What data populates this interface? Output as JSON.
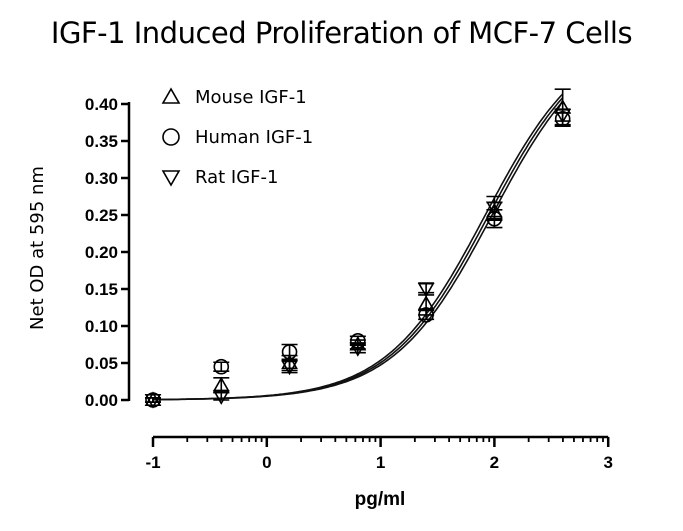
{
  "chart_data": {
    "type": "scatter",
    "title": "IGF-1 Induced Proliferation of MCF-7 Cells",
    "xlabel": "pg/ml",
    "ylabel": "Net OD at 595 nm",
    "xlim": [
      -1,
      3
    ],
    "ylim": [
      0,
      0.4
    ],
    "xticks": [
      "-1",
      "0",
      "1",
      "2",
      "3"
    ],
    "yticks": [
      "0.00",
      "0.05",
      "0.10",
      "0.15",
      "0.20",
      "0.25",
      "0.30",
      "0.35",
      "0.40"
    ],
    "legend_position": "top-left",
    "x": [
      -1,
      -0.4,
      0.2,
      0.8,
      1.4,
      2.0,
      2.6
    ],
    "series": [
      {
        "name": "Mouse IGF-1",
        "marker": "triangle-up",
        "values": [
          0.0,
          0.02,
          0.05,
          0.075,
          0.13,
          0.255,
          0.395
        ],
        "errors": [
          0.003,
          0.01,
          0.01,
          0.006,
          0.015,
          0.012,
          0.025
        ]
      },
      {
        "name": "Human IGF-1",
        "marker": "circle",
        "values": [
          0.0,
          0.045,
          0.065,
          0.08,
          0.115,
          0.245,
          0.38
        ],
        "errors": [
          0.003,
          0.006,
          0.01,
          0.006,
          0.006,
          0.012,
          0.008
        ]
      },
      {
        "name": "Rat IGF-1",
        "marker": "triangle-down",
        "values": [
          0.0,
          0.005,
          0.045,
          0.07,
          0.15,
          0.26,
          0.385
        ],
        "errors": [
          0.003,
          0.005,
          0.008,
          0.006,
          0.008,
          0.015,
          0.008
        ]
      }
    ],
    "fit": {
      "model": "4PL",
      "bottom": 0,
      "top": 0.5,
      "log_ec50": 1.95,
      "hill": 1.0
    }
  }
}
